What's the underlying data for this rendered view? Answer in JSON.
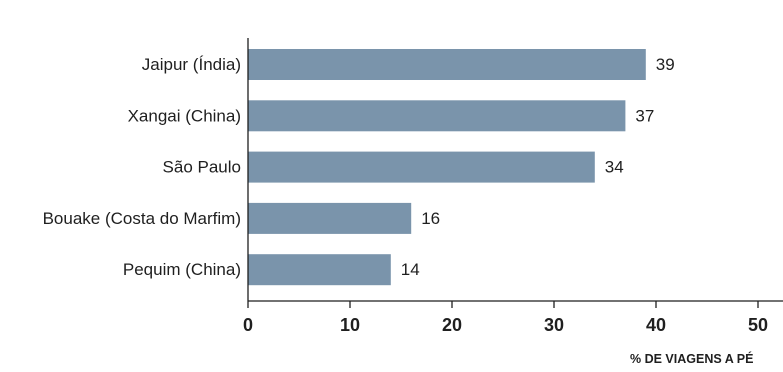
{
  "chart_data": {
    "type": "bar",
    "orientation": "horizontal",
    "categories": [
      "Jaipur (Índia)",
      "Xangai (China)",
      "São Paulo",
      "Bouake (Costa do Marfim)",
      "Pequim (China)"
    ],
    "values": [
      39,
      37,
      34,
      16,
      14
    ],
    "value_labels": [
      "39",
      "37",
      "34",
      "16",
      "14"
    ],
    "xlabel": "% DE VIAGENS A PÉ",
    "xlim": [
      0,
      50
    ],
    "xticks": [
      "0",
      "10",
      "20",
      "30",
      "40",
      "50"
    ],
    "grid": false,
    "legend": "none"
  },
  "colors": {
    "bar": "#7a94ab",
    "axis": "#1f1f1f",
    "text": "#1f1f1f",
    "background": "#ffffff"
  }
}
